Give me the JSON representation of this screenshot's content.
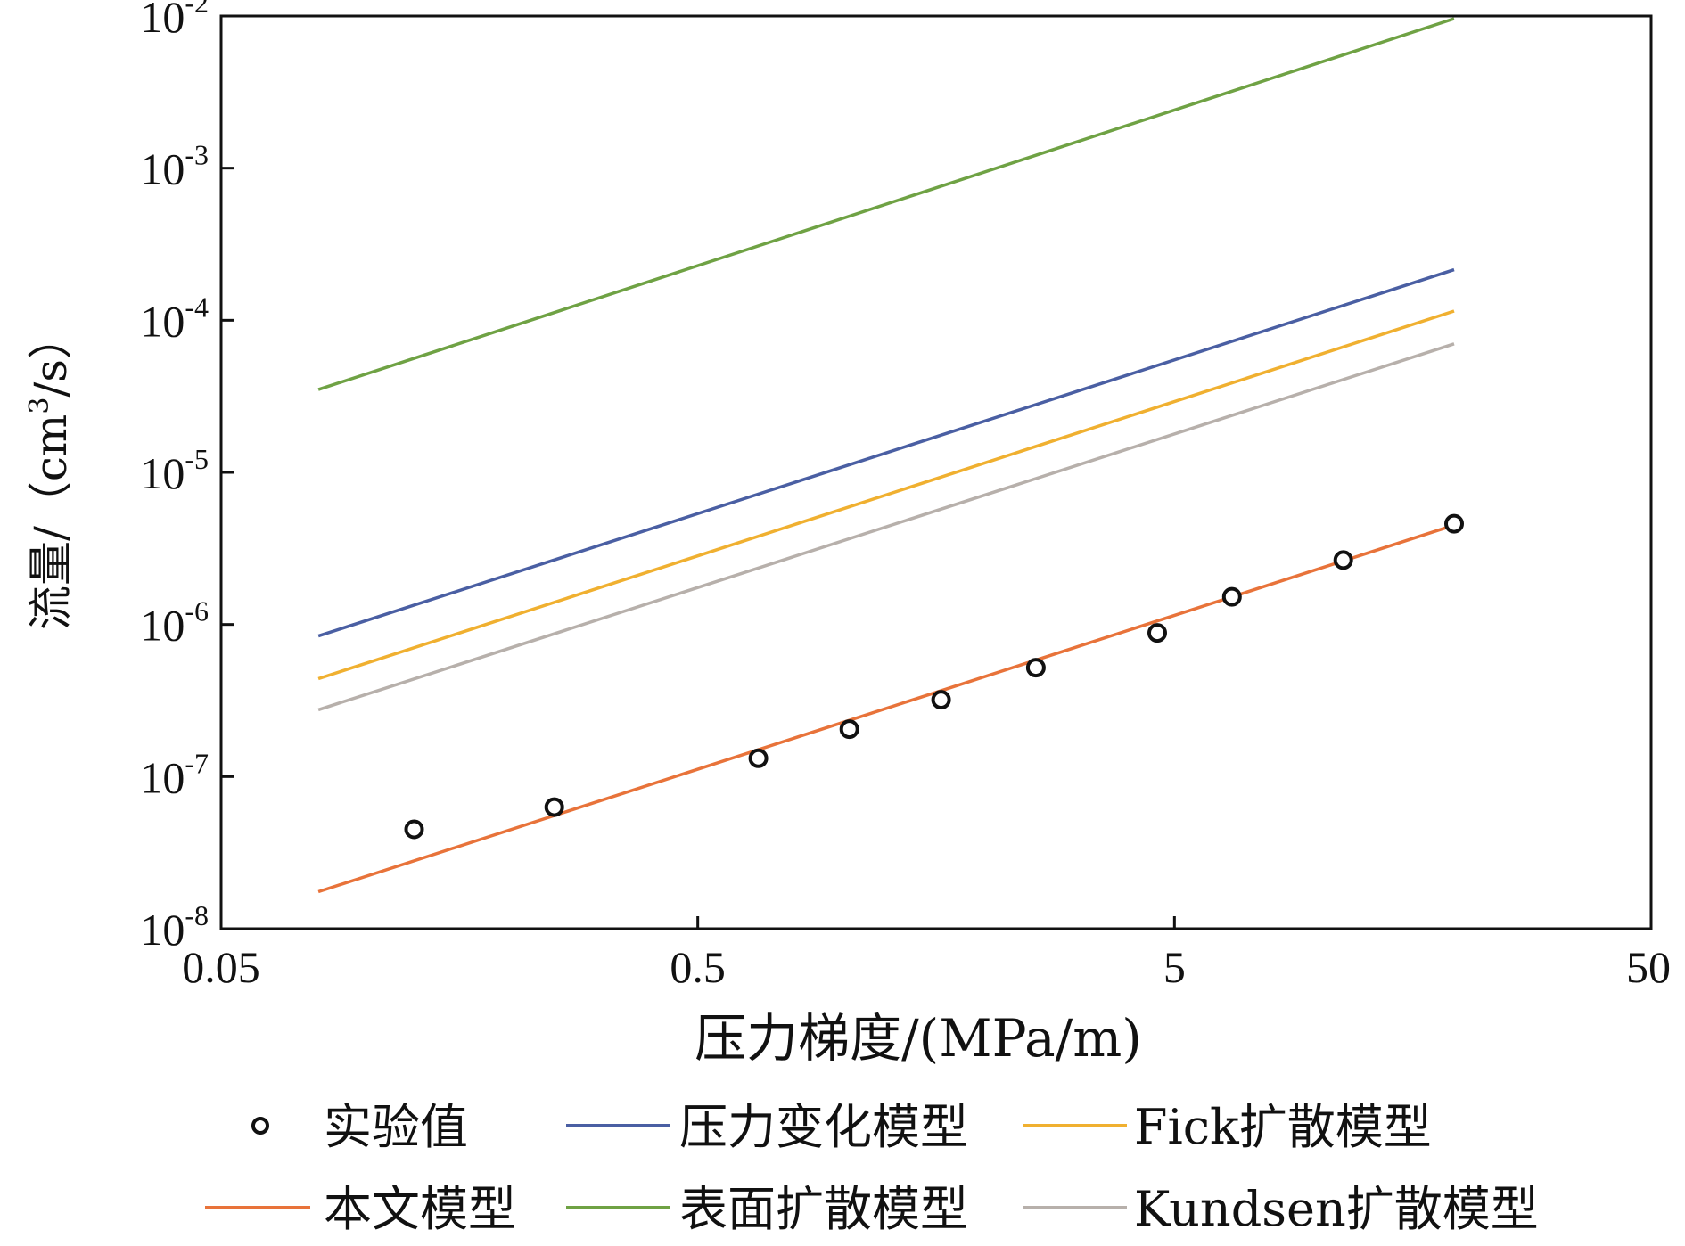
{
  "chart_data": {
    "type": "line",
    "xlabel": "压力梯度/(MPa/m)",
    "ylabel_main": "流量/（cm",
    "ylabel_sup": "3",
    "ylabel_tail": "/s）",
    "x_scale": "log",
    "y_scale": "log",
    "xlim": [
      0.05,
      50
    ],
    "ylim": [
      1e-08,
      0.01
    ],
    "x_ticks": [
      {
        "value": 0.05,
        "label": "0.05"
      },
      {
        "value": 0.5,
        "label": "0.5"
      },
      {
        "value": 5,
        "label": "5"
      },
      {
        "value": 50,
        "label": "50"
      }
    ],
    "y_ticks": [
      {
        "value": 1e-08,
        "base": "10",
        "exp": "-8"
      },
      {
        "value": 1e-07,
        "base": "10",
        "exp": "-7"
      },
      {
        "value": 1e-06,
        "base": "10",
        "exp": "-6"
      },
      {
        "value": 1e-05,
        "base": "10",
        "exp": "-5"
      },
      {
        "value": 0.0001,
        "base": "10",
        "exp": "-4"
      },
      {
        "value": 0.001,
        "base": "10",
        "exp": "-3"
      },
      {
        "value": 0.01,
        "base": "10",
        "exp": "-2"
      }
    ],
    "grid": false,
    "legend_position": "bottom",
    "series": [
      {
        "name": "实验值",
        "kind": "scatter",
        "color": "#111111",
        "x": [
          0.127,
          0.25,
          0.67,
          1.04,
          1.62,
          2.56,
          4.6,
          6.6,
          11.3,
          19.3
        ],
        "y": [
          4.5e-08,
          6.3e-08,
          1.32e-07,
          2.05e-07,
          3.2e-07,
          5.2e-07,
          8.8e-07,
          1.52e-06,
          2.65e-06,
          4.6e-06
        ]
      },
      {
        "name": "压力变化模型",
        "kind": "line",
        "color": "#4a5fa3",
        "x": [
          0.08,
          19.3
        ],
        "y": [
          8.4e-07,
          0.000215
        ]
      },
      {
        "name": "Fick扩散模型",
        "kind": "line",
        "color": "#f0b030",
        "x": [
          0.08,
          19.3
        ],
        "y": [
          4.4e-07,
          0.000115
        ]
      },
      {
        "name": "本文模型",
        "kind": "line",
        "color": "#e8733a",
        "x": [
          0.08,
          19.3
        ],
        "y": [
          1.75e-08,
          4.5e-06
        ]
      },
      {
        "name": "表面扩散模型",
        "kind": "line",
        "color": "#6fa244",
        "x": [
          0.08,
          19.3
        ],
        "y": [
          3.5e-05,
          0.0096
        ]
      },
      {
        "name": "Kundsen扩散模型",
        "kind": "line",
        "color": "#b7b0ab",
        "x": [
          0.08,
          19.3
        ],
        "y": [
          2.75e-07,
          7e-05
        ]
      }
    ]
  }
}
